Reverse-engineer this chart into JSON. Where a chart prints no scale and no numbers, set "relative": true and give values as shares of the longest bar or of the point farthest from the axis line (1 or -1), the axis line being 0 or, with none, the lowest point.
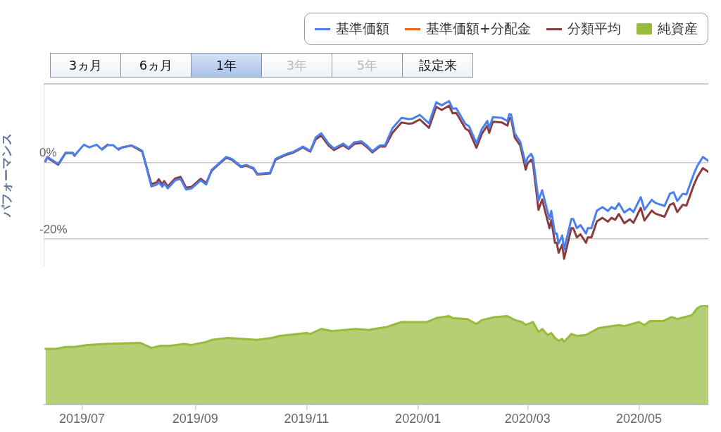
{
  "chart_data": [
    {
      "type": "line",
      "ylabel": "パフォーマンス",
      "annotations": [
        "3ヵ月",
        "6ヵ月",
        "1年",
        "3年",
        "5年",
        "設定来"
      ],
      "x": [
        "2019-06-11",
        "2019-06-12",
        "2019-06-18",
        "2019-06-22",
        "2019-06-26",
        "2019-06-27",
        "2019-07-02",
        "2019-07-05",
        "2019-07-09",
        "2019-07-12",
        "2019-07-15",
        "2019-07-18",
        "2019-07-21",
        "2019-07-23",
        "2019-07-28",
        "2019-07-31",
        "2019-08-03",
        "2019-08-08",
        "2019-08-11",
        "2019-08-12",
        "2019-08-14",
        "2019-08-15",
        "2019-08-17",
        "2019-08-21",
        "2019-08-24",
        "2019-08-27",
        "2019-08-30",
        "2019-09-04",
        "2019-09-07",
        "2019-09-10",
        "2019-09-13",
        "2019-09-18",
        "2019-09-21",
        "2019-09-26",
        "2019-09-29",
        "2019-10-03",
        "2019-10-05",
        "2019-10-12",
        "2019-10-15",
        "2019-10-21",
        "2019-10-25",
        "2019-10-30",
        "2019-11-03",
        "2019-11-06",
        "2019-11-09",
        "2019-11-13",
        "2019-11-16",
        "2019-11-21",
        "2019-11-24",
        "2019-11-27",
        "2019-12-01",
        "2019-12-04",
        "2019-12-07",
        "2019-12-11",
        "2019-12-14",
        "2019-12-18",
        "2019-12-23",
        "2019-12-27",
        "2019-12-29",
        "2020-01-02",
        "2020-01-07",
        "2020-01-11",
        "2020-01-14",
        "2020-01-18",
        "2020-01-20",
        "2020-01-22",
        "2020-01-27",
        "2020-01-29",
        "2020-02-02",
        "2020-02-05",
        "2020-02-08",
        "2020-02-09",
        "2020-02-11",
        "2020-02-16",
        "2020-02-19",
        "2020-02-20",
        "2020-02-21",
        "2020-02-23",
        "2020-02-26",
        "2020-02-29",
        "2020-03-01",
        "2020-03-03",
        "2020-03-04",
        "2020-03-07",
        "2020-03-09",
        "2020-03-13",
        "2020-03-14",
        "2020-03-16",
        "2020-03-17",
        "2020-03-18",
        "2020-03-20",
        "2020-03-21",
        "2020-03-25",
        "2020-03-26",
        "2020-03-28",
        "2020-03-30",
        "2020-04-02",
        "2020-04-03",
        "2020-04-05",
        "2020-04-08",
        "2020-04-11",
        "2020-04-14",
        "2020-04-16",
        "2020-04-18",
        "2020-04-20",
        "2020-04-23",
        "2020-04-26",
        "2020-04-28",
        "2020-05-02",
        "2020-05-04",
        "2020-05-08",
        "2020-05-10",
        "2020-05-15",
        "2020-05-18",
        "2020-05-20",
        "2020-05-22",
        "2020-05-25",
        "2020-05-27",
        "2020-05-31",
        "2020-06-02",
        "2020-06-05",
        "2020-06-08"
      ],
      "series": [
        {
          "name": "基準価額",
          "color": "#4a7ff0",
          "values": [
            0.4,
            1.4,
            -0.4,
            2.5,
            2.5,
            1.8,
            4.6,
            3.9,
            4.6,
            3.3,
            4.5,
            4.5,
            3.3,
            3.9,
            4.4,
            3.8,
            3.0,
            -6.3,
            -5.8,
            -5.2,
            -6.4,
            -5.5,
            -6.8,
            -4.7,
            -4.3,
            -7.1,
            -6.8,
            -4.7,
            -5.8,
            -2.0,
            -0.7,
            1.4,
            0.9,
            -1.0,
            -0.7,
            -1.5,
            -3.0,
            -2.7,
            0.9,
            2.2,
            2.8,
            4.1,
            3.0,
            6.5,
            7.6,
            4.9,
            3.6,
            4.9,
            3.8,
            5.2,
            5.5,
            4.4,
            2.9,
            4.4,
            4.5,
            8.9,
            11.6,
            11.3,
            11.4,
            12.4,
            10.2,
            15.7,
            14.9,
            16.0,
            14.0,
            14.1,
            10.0,
            9.4,
            5.0,
            8.7,
            10.8,
            8.9,
            11.8,
            11.6,
            10.8,
            12.6,
            12.5,
            7.5,
            5.4,
            -0.4,
            1.2,
            2.2,
            1.2,
            -10.0,
            -7.3,
            -14.8,
            -12.7,
            -18.6,
            -18.6,
            -21.2,
            -19.1,
            -22.8,
            -14.8,
            -14.8,
            -17.2,
            -16.4,
            -18.6,
            -17.2,
            -17.2,
            -12.6,
            -11.7,
            -12.7,
            -11.7,
            -12.2,
            -10.7,
            -13.1,
            -12.1,
            -13.0,
            -9.1,
            -12.4,
            -9.8,
            -10.6,
            -11.4,
            -8.2,
            -7.8,
            -10.1,
            -8.2,
            -8.4,
            -3.1,
            -0.9,
            1.4,
            0.4
          ]
        },
        {
          "name": "基準価額+分配金",
          "color": "#e8641e",
          "values": [
            null,
            null,
            null,
            null,
            null,
            null,
            null,
            null,
            null,
            null,
            null,
            null,
            null,
            null,
            null,
            null,
            null,
            null,
            null,
            null,
            null,
            null,
            null,
            null,
            null,
            null,
            null,
            null,
            null,
            null,
            null,
            null,
            null,
            null,
            null,
            null,
            null,
            null,
            null,
            null,
            null,
            null,
            null,
            null,
            null,
            null,
            null,
            null,
            null,
            null,
            null,
            null,
            null,
            null,
            null,
            null,
            null,
            null,
            null,
            null,
            null,
            null,
            null,
            null,
            null,
            null,
            null,
            null,
            null,
            null,
            null,
            null,
            null,
            null,
            null,
            null,
            null,
            null,
            null,
            null,
            null,
            null,
            null,
            null,
            null,
            null,
            null,
            null,
            null,
            null,
            null,
            null,
            null,
            null,
            null,
            null,
            null,
            null,
            null,
            null,
            null,
            null,
            null,
            null,
            null,
            null,
            null,
            null,
            null,
            null,
            null,
            null,
            null,
            null,
            null,
            null,
            null,
            null,
            null,
            null,
            null,
            null
          ]
        },
        {
          "name": "分類平均",
          "color": "#8c3b3b",
          "values": [
            0.3,
            1.2,
            -0.6,
            2.4,
            2.4,
            1.7,
            null,
            null,
            null,
            3.5,
            4.6,
            null,
            3.5,
            3.9,
            4.4,
            3.6,
            2.8,
            -5.7,
            -5.2,
            -4.4,
            -5.8,
            -4.9,
            -6.3,
            -4.2,
            -3.8,
            -6.6,
            -6.4,
            -4.3,
            -5.4,
            -2.2,
            -0.9,
            1.2,
            0.7,
            -1.2,
            -0.9,
            -1.7,
            -3.2,
            -2.9,
            0.7,
            2.0,
            2.6,
            3.9,
            2.8,
            6.0,
            7.0,
            4.4,
            3.2,
            4.5,
            3.5,
            4.8,
            5.1,
            4.0,
            2.6,
            4.1,
            4.1,
            7.7,
            10.4,
            10.1,
            10.2,
            11.2,
            9.0,
            14.5,
            13.7,
            14.8,
            12.8,
            12.9,
            8.8,
            8.2,
            3.8,
            7.5,
            9.6,
            7.7,
            10.6,
            10.4,
            9.6,
            11.6,
            11.5,
            6.5,
            4.4,
            -1.9,
            -0.3,
            0.7,
            -0.3,
            -12.4,
            -9.7,
            -17.2,
            -15.1,
            -21.0,
            -21.0,
            -23.6,
            -21.5,
            -25.2,
            -17.2,
            -17.2,
            -19.6,
            -18.8,
            -21.0,
            -19.6,
            -19.6,
            -15.4,
            -14.5,
            -15.5,
            -14.5,
            -15.0,
            -13.5,
            -15.9,
            -14.9,
            -15.8,
            -11.9,
            -15.2,
            -12.6,
            -13.4,
            -14.2,
            -11.1,
            -10.7,
            -13.0,
            -11.1,
            -11.3,
            -6.0,
            -3.8,
            -1.5,
            -2.5
          ]
        }
      ],
      "xlim": [
        "2019-06-10",
        "2020-06-08"
      ],
      "ylim": [
        -27,
        20.5
      ],
      "yticks": [
        {
          "value": 0,
          "label": "0%"
        },
        {
          "value": -20,
          "label": "-20%"
        }
      ],
      "grid": "y",
      "legend": "top right",
      "tick_labels": "y",
      "line_style": "solid",
      "marker": "none"
    },
    {
      "type": "area",
      "relative": true,
      "x": [
        "2019-06-11",
        "2019-06-17",
        "2019-06-22",
        "2019-06-27",
        "2019-07-04",
        "2019-07-14",
        "2019-08-02",
        "2019-08-08",
        "2019-08-13",
        "2019-08-18",
        "2019-08-26",
        "2019-08-30",
        "2019-09-07",
        "2019-09-10",
        "2019-09-19",
        "2019-10-05",
        "2019-10-13",
        "2019-10-17",
        "2019-11-01",
        "2019-11-03",
        "2019-11-09",
        "2019-11-15",
        "2019-11-28",
        "2019-12-05",
        "2019-12-11",
        "2019-12-15",
        "2019-12-18",
        "2019-12-23",
        "2020-01-02",
        "2020-01-06",
        "2020-01-11",
        "2020-01-18",
        "2020-01-20",
        "2020-01-28",
        "2020-02-02",
        "2020-02-05",
        "2020-02-12",
        "2020-02-19",
        "2020-02-23",
        "2020-02-27",
        "2020-02-29",
        "2020-03-04",
        "2020-03-07",
        "2020-03-09",
        "2020-03-12",
        "2020-03-14",
        "2020-03-16",
        "2020-03-18",
        "2020-03-20",
        "2020-03-21",
        "2020-03-25",
        "2020-03-28",
        "2020-04-02",
        "2020-04-04",
        "2020-04-09",
        "2020-04-20",
        "2020-04-23",
        "2020-05-01",
        "2020-05-04",
        "2020-05-07",
        "2020-05-14",
        "2020-05-19",
        "2020-05-22",
        "2020-05-30",
        "2020-06-02",
        "2020-06-05",
        "2020-06-08"
      ],
      "series": [
        {
          "name": "純資産",
          "color": "#97bb3b",
          "values": [
            0.56,
            0.56,
            0.58,
            0.58,
            0.6,
            0.61,
            0.62,
            0.57,
            0.59,
            0.59,
            0.61,
            0.6,
            0.63,
            0.65,
            0.67,
            0.65,
            0.67,
            0.69,
            0.72,
            0.71,
            0.76,
            0.74,
            0.76,
            0.75,
            0.77,
            0.78,
            0.8,
            0.83,
            0.83,
            0.83,
            0.87,
            0.89,
            0.87,
            0.86,
            0.81,
            0.85,
            0.88,
            0.89,
            0.85,
            0.83,
            0.8,
            0.83,
            0.73,
            0.76,
            0.7,
            0.72,
            0.67,
            0.64,
            0.66,
            0.63,
            0.71,
            0.69,
            0.7,
            0.72,
            0.77,
            0.8,
            0.79,
            0.83,
            0.8,
            0.84,
            0.84,
            0.88,
            0.86,
            0.9,
            0.97,
            1.0,
            0.99
          ]
        }
      ],
      "xlim": [
        "2019-06-10",
        "2020-06-08"
      ],
      "xticks": [
        {
          "value": "2019-07-01",
          "label": "2019/07"
        },
        {
          "value": "2019-09-01",
          "label": "2019/09"
        },
        {
          "value": "2019-11-01",
          "label": "2019/11"
        },
        {
          "value": "2020-01-01",
          "label": "2020/01"
        },
        {
          "value": "2020-03-01",
          "label": "2020/03"
        },
        {
          "value": "2020-05-01",
          "label": "2020/05"
        }
      ],
      "tick_labels": "x",
      "legend": "top right"
    }
  ]
}
